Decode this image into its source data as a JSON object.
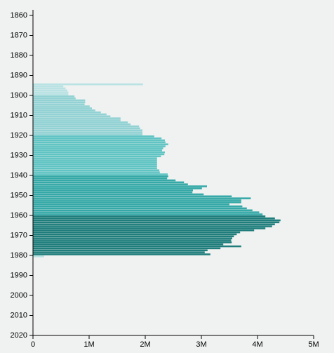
{
  "chart_data": {
    "type": "hbar",
    "y": [
      1894,
      1895,
      1896,
      1897,
      1898,
      1899,
      1900,
      1901,
      1902,
      1903,
      1904,
      1905,
      1906,
      1907,
      1908,
      1909,
      1910,
      1911,
      1912,
      1913,
      1914,
      1915,
      1916,
      1917,
      1918,
      1919,
      1920,
      1921,
      1922,
      1923,
      1924,
      1925,
      1926,
      1927,
      1928,
      1929,
      1930,
      1931,
      1932,
      1933,
      1934,
      1935,
      1936,
      1937,
      1938,
      1939,
      1940,
      1941,
      1942,
      1943,
      1944,
      1945,
      1946,
      1947,
      1948,
      1949,
      1950,
      1951,
      1952,
      1953,
      1954,
      1955,
      1956,
      1957,
      1958,
      1959,
      1960,
      1961,
      1962,
      1963,
      1964,
      1965,
      1966,
      1967,
      1968,
      1969,
      1970,
      1971,
      1972,
      1973,
      1974,
      1975,
      1976,
      1977,
      1978,
      1979,
      1980
    ],
    "values": [
      1960000,
      540000,
      580000,
      610000,
      630000,
      630000,
      740000,
      760000,
      930000,
      930000,
      920000,
      1010000,
      1050000,
      1110000,
      1210000,
      1310000,
      1380000,
      1560000,
      1560000,
      1690000,
      1740000,
      1890000,
      1910000,
      1950000,
      1950000,
      1950000,
      2160000,
      2290000,
      2350000,
      2360000,
      2410000,
      2360000,
      2320000,
      2300000,
      2350000,
      2340000,
      2280000,
      2210000,
      2210000,
      2210000,
      2210000,
      2210000,
      2210000,
      2250000,
      2260000,
      2400000,
      2410000,
      2390000,
      2540000,
      2690000,
      2760000,
      3100000,
      3010000,
      2850000,
      2840000,
      3040000,
      3540000,
      3880000,
      3710000,
      3710000,
      3500000,
      3730000,
      3810000,
      3910000,
      4030000,
      4090000,
      4140000,
      4310000,
      4410000,
      4390000,
      4310000,
      4260000,
      4140000,
      3940000,
      3690000,
      3630000,
      3580000,
      3550000,
      3530000,
      3540000,
      3390000,
      3710000,
      3340000,
      3110000,
      3060000,
      3160000,
      200000
    ],
    "colors": [
      "#b8e2e3",
      "#b8e2e3",
      "#b8e2e3",
      "#b8e2e3",
      "#b8e2e3",
      "#b8e2e3",
      "#92d2d4",
      "#92d2d4",
      "#92d2d4",
      "#92d2d4",
      "#92d2d4",
      "#92d2d4",
      "#92d2d4",
      "#92d2d4",
      "#92d2d4",
      "#92d2d4",
      "#92d2d4",
      "#92d2d4",
      "#92d2d4",
      "#92d2d4",
      "#92d2d4",
      "#92d2d4",
      "#92d2d4",
      "#92d2d4",
      "#92d2d4",
      "#92d2d4",
      "#5fc4c3",
      "#5fc4c3",
      "#5fc4c3",
      "#5fc4c3",
      "#5fc4c3",
      "#5fc4c3",
      "#5fc4c3",
      "#5fc4c3",
      "#5fc4c3",
      "#5fc4c3",
      "#5fc4c3",
      "#5fc4c3",
      "#5fc4c3",
      "#5fc4c3",
      "#5fc4c3",
      "#5fc4c3",
      "#5fc4c3",
      "#5fc4c3",
      "#5fc4c3",
      "#5fc4c3",
      "#35a9a7",
      "#35a9a7",
      "#35a9a7",
      "#35a9a7",
      "#35a9a7",
      "#35a9a7",
      "#35a9a7",
      "#35a9a7",
      "#35a9a7",
      "#35a9a7",
      "#35a9a7",
      "#35a9a7",
      "#35a9a7",
      "#35a9a7",
      "#35a9a7",
      "#35a9a7",
      "#35a9a7",
      "#35a9a7",
      "#35a9a7",
      "#35a9a7",
      "#1f7e7c",
      "#1f7e7c",
      "#1f7e7c",
      "#1f7e7c",
      "#1f7e7c",
      "#1f7e7c",
      "#1f7e7c",
      "#1f7e7c",
      "#1f7e7c",
      "#1f7e7c",
      "#1f7e7c",
      "#1f7e7c",
      "#1f7e7c",
      "#1f7e7c",
      "#1f7e7c",
      "#1f7e7c",
      "#1f7e7c",
      "#1f7e7c",
      "#1f7e7c",
      "#1f7e7c",
      "#b8e2e3"
    ],
    "ylim": [
      1860,
      2020
    ],
    "yticks": [
      1860,
      1870,
      1880,
      1890,
      1900,
      1910,
      1920,
      1930,
      1940,
      1950,
      1960,
      1970,
      1980,
      1990,
      2000,
      2010,
      2020
    ],
    "xlim": [
      0,
      5000000
    ],
    "xticks": [
      0,
      {
        "value": 1000000,
        "label": "1M"
      },
      {
        "value": 2000000,
        "label": "2M"
      },
      {
        "value": 3000000,
        "label": "3M"
      },
      {
        "value": 4000000,
        "label": "4M"
      },
      {
        "value": 5000000,
        "label": "5M"
      }
    ]
  }
}
